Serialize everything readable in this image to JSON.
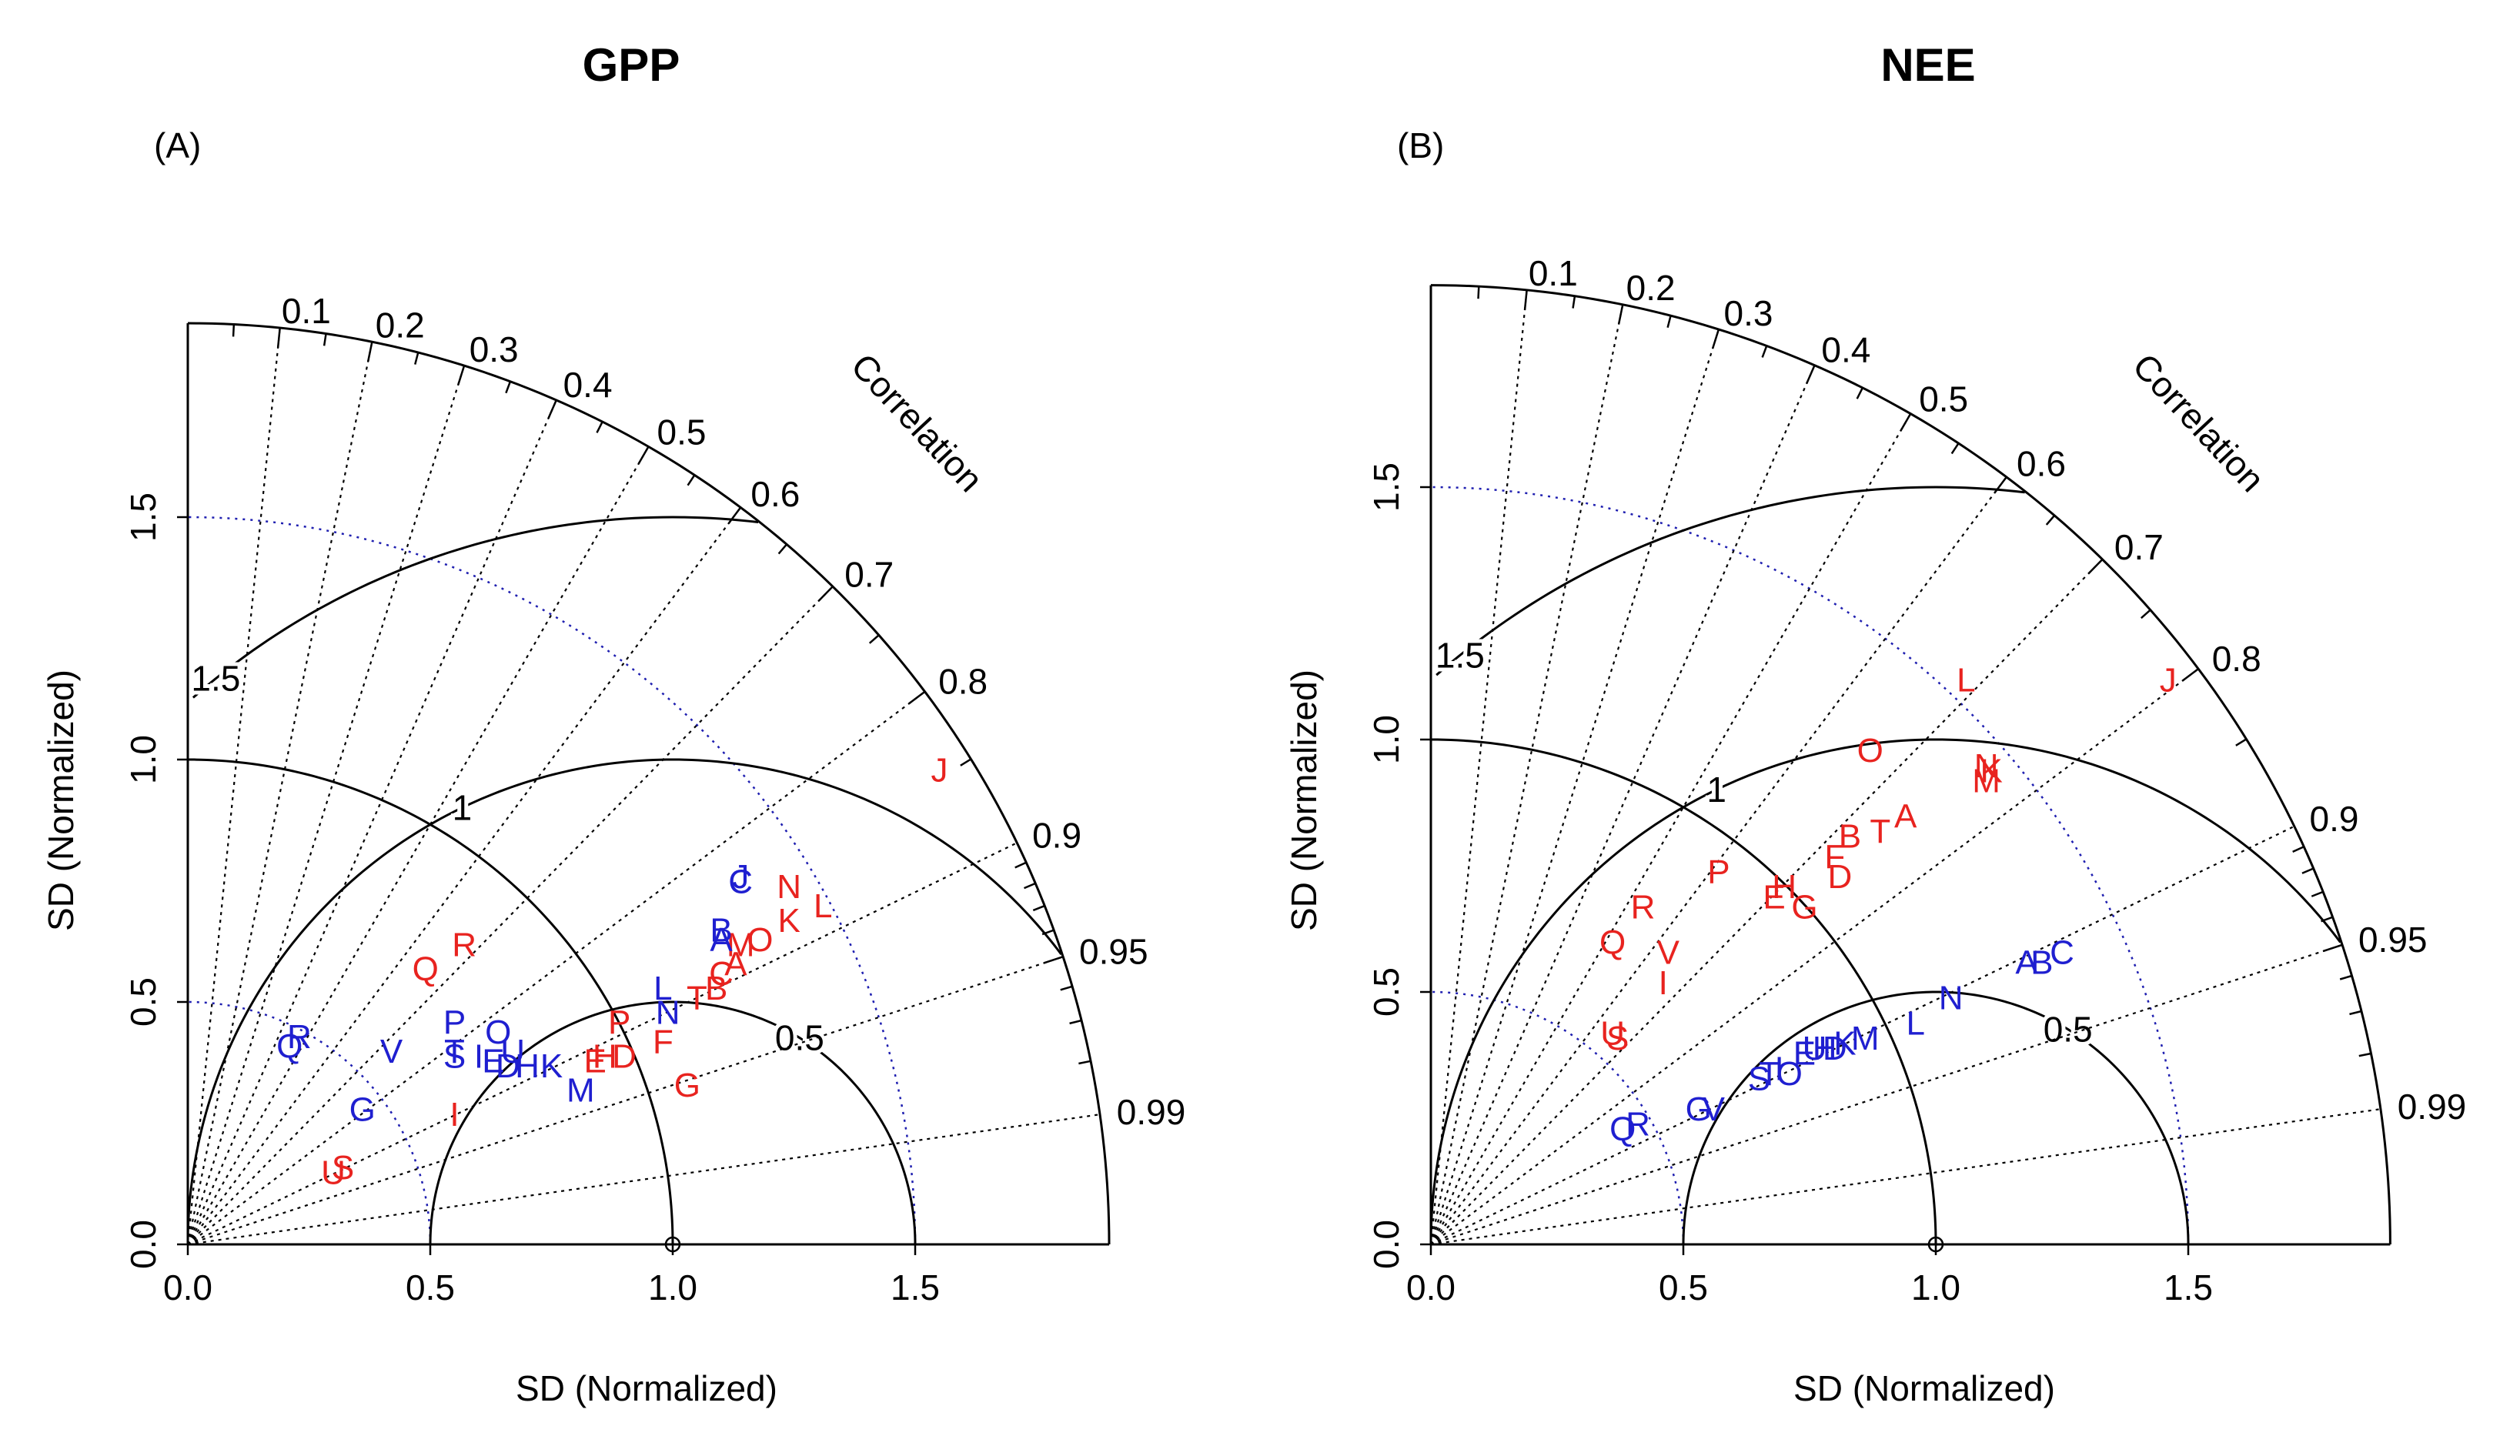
{
  "colors": {
    "red": "#e8231f",
    "blue": "#1f1fd0",
    "guide": "#1f1fb0",
    "black": "#000000"
  },
  "chart_data": [
    {
      "type": "taylor",
      "panel_label": "(A)",
      "title": "GPP",
      "xlabel": "SD (Normalized)",
      "ylabel": "SD (Normalized)",
      "sd_max": 1.9,
      "x_ticks": [
        "0.0",
        "0.5",
        "1.0",
        "1.5"
      ],
      "y_ticks": [
        "0.0",
        "0.5",
        "1.0",
        "1.5"
      ],
      "correlation_label": "Correlation",
      "correlation_ticks": [
        "0.1",
        "0.2",
        "0.3",
        "0.4",
        "0.5",
        "0.6",
        "0.7",
        "0.8",
        "0.9",
        "0.95",
        "0.99"
      ],
      "rms_labels": [
        "0.5",
        "1",
        "1.5"
      ],
      "red_points": [
        {
          "label": "J",
          "x": 1.55,
          "y": 0.98
        },
        {
          "label": "N",
          "x": 1.24,
          "y": 0.74
        },
        {
          "label": "L",
          "x": 1.31,
          "y": 0.7
        },
        {
          "label": "K",
          "x": 1.24,
          "y": 0.67
        },
        {
          "label": "O",
          "x": 1.18,
          "y": 0.63
        },
        {
          "label": "M",
          "x": 1.14,
          "y": 0.62
        },
        {
          "label": "A",
          "x": 1.13,
          "y": 0.58
        },
        {
          "label": "C",
          "x": 1.1,
          "y": 0.56
        },
        {
          "label": "B",
          "x": 1.09,
          "y": 0.53
        },
        {
          "label": "T",
          "x": 1.05,
          "y": 0.51
        },
        {
          "label": "P",
          "x": 0.89,
          "y": 0.46
        },
        {
          "label": "D",
          "x": 0.9,
          "y": 0.39
        },
        {
          "label": "F",
          "x": 0.98,
          "y": 0.42
        },
        {
          "label": "H",
          "x": 0.86,
          "y": 0.39
        },
        {
          "label": "E",
          "x": 0.84,
          "y": 0.38
        },
        {
          "label": "G",
          "x": 1.03,
          "y": 0.33
        },
        {
          "label": "R",
          "x": 0.57,
          "y": 0.62
        },
        {
          "label": "Q",
          "x": 0.49,
          "y": 0.57
        },
        {
          "label": "I",
          "x": 0.55,
          "y": 0.27
        },
        {
          "label": "U",
          "x": 0.3,
          "y": 0.15
        },
        {
          "label": "S",
          "x": 0.32,
          "y": 0.16
        }
      ],
      "blue_points": [
        {
          "label": "C",
          "x": 1.14,
          "y": 0.75
        },
        {
          "label": "J",
          "x": 1.14,
          "y": 0.76
        },
        {
          "label": "B",
          "x": 1.1,
          "y": 0.65
        },
        {
          "label": "A",
          "x": 1.1,
          "y": 0.63
        },
        {
          "label": "L",
          "x": 0.98,
          "y": 0.53
        },
        {
          "label": "N",
          "x": 0.99,
          "y": 0.48
        },
        {
          "label": "P",
          "x": 0.55,
          "y": 0.46
        },
        {
          "label": "O",
          "x": 0.64,
          "y": 0.44
        },
        {
          "label": "U",
          "x": 0.67,
          "y": 0.4
        },
        {
          "label": "T",
          "x": 0.55,
          "y": 0.4
        },
        {
          "label": "S",
          "x": 0.55,
          "y": 0.39
        },
        {
          "label": "I",
          "x": 0.6,
          "y": 0.39
        },
        {
          "label": "E",
          "x": 0.63,
          "y": 0.38
        },
        {
          "label": "D",
          "x": 0.66,
          "y": 0.37
        },
        {
          "label": "H",
          "x": 0.7,
          "y": 0.37
        },
        {
          "label": "K",
          "x": 0.75,
          "y": 0.37
        },
        {
          "label": "M",
          "x": 0.81,
          "y": 0.32
        },
        {
          "label": "V",
          "x": 0.42,
          "y": 0.4
        },
        {
          "label": "R",
          "x": 0.23,
          "y": 0.43
        },
        {
          "label": "Q",
          "x": 0.21,
          "y": 0.41
        },
        {
          "label": "G",
          "x": 0.36,
          "y": 0.28
        }
      ]
    },
    {
      "type": "taylor",
      "panel_label": "(B)",
      "title": "NEE",
      "xlabel": "SD (Normalized)",
      "ylabel": "SD (Normalized)",
      "sd_max": 1.9,
      "x_ticks": [
        "0.0",
        "0.5",
        "1.0",
        "1.5"
      ],
      "y_ticks": [
        "0.0",
        "0.5",
        "1.0",
        "1.5"
      ],
      "correlation_label": "Correlation",
      "correlation_ticks": [
        "0.1",
        "0.2",
        "0.3",
        "0.4",
        "0.5",
        "0.6",
        "0.7",
        "0.8",
        "0.9",
        "0.95",
        "0.99"
      ],
      "rms_labels": [
        "0.5",
        "1",
        "1.5"
      ],
      "red_points": [
        {
          "label": "J",
          "x": 1.46,
          "y": 1.12
        },
        {
          "label": "L",
          "x": 1.06,
          "y": 1.12
        },
        {
          "label": "N",
          "x": 1.1,
          "y": 0.95
        },
        {
          "label": "K",
          "x": 1.11,
          "y": 0.94
        },
        {
          "label": "M",
          "x": 1.1,
          "y": 0.92
        },
        {
          "label": "O",
          "x": 0.87,
          "y": 0.98
        },
        {
          "label": "A",
          "x": 0.94,
          "y": 0.85
        },
        {
          "label": "T",
          "x": 0.89,
          "y": 0.82
        },
        {
          "label": "B",
          "x": 0.83,
          "y": 0.81
        },
        {
          "label": "F",
          "x": 0.8,
          "y": 0.77
        },
        {
          "label": "D",
          "x": 0.81,
          "y": 0.73
        },
        {
          "label": "P",
          "x": 0.57,
          "y": 0.74
        },
        {
          "label": "H",
          "x": 0.7,
          "y": 0.71
        },
        {
          "label": "E",
          "x": 0.68,
          "y": 0.69
        },
        {
          "label": "G",
          "x": 0.74,
          "y": 0.67
        },
        {
          "label": "R",
          "x": 0.42,
          "y": 0.67
        },
        {
          "label": "Q",
          "x": 0.36,
          "y": 0.6
        },
        {
          "label": "V",
          "x": 0.47,
          "y": 0.58
        },
        {
          "label": "I",
          "x": 0.46,
          "y": 0.52
        },
        {
          "label": "U",
          "x": 0.36,
          "y": 0.42
        },
        {
          "label": "S",
          "x": 0.37,
          "y": 0.41
        }
      ],
      "blue_points": [
        {
          "label": "C",
          "x": 1.25,
          "y": 0.58
        },
        {
          "label": "B",
          "x": 1.21,
          "y": 0.56
        },
        {
          "label": "A",
          "x": 1.18,
          "y": 0.56
        },
        {
          "label": "N",
          "x": 1.03,
          "y": 0.49
        },
        {
          "label": "L",
          "x": 0.96,
          "y": 0.44
        },
        {
          "label": "M",
          "x": 0.86,
          "y": 0.41
        },
        {
          "label": "K",
          "x": 0.82,
          "y": 0.4
        },
        {
          "label": "D",
          "x": 0.8,
          "y": 0.39
        },
        {
          "label": "H",
          "x": 0.78,
          "y": 0.39
        },
        {
          "label": "U",
          "x": 0.76,
          "y": 0.39
        },
        {
          "label": "E",
          "x": 0.74,
          "y": 0.38
        },
        {
          "label": "O",
          "x": 0.71,
          "y": 0.34
        },
        {
          "label": "I",
          "x": 0.69,
          "y": 0.35
        },
        {
          "label": "T",
          "x": 0.67,
          "y": 0.34
        },
        {
          "label": "S",
          "x": 0.65,
          "y": 0.33
        },
        {
          "label": "V",
          "x": 0.56,
          "y": 0.27
        },
        {
          "label": "G",
          "x": 0.53,
          "y": 0.27
        },
        {
          "label": "R",
          "x": 0.41,
          "y": 0.24
        },
        {
          "label": "Q",
          "x": 0.38,
          "y": 0.23
        }
      ]
    }
  ]
}
